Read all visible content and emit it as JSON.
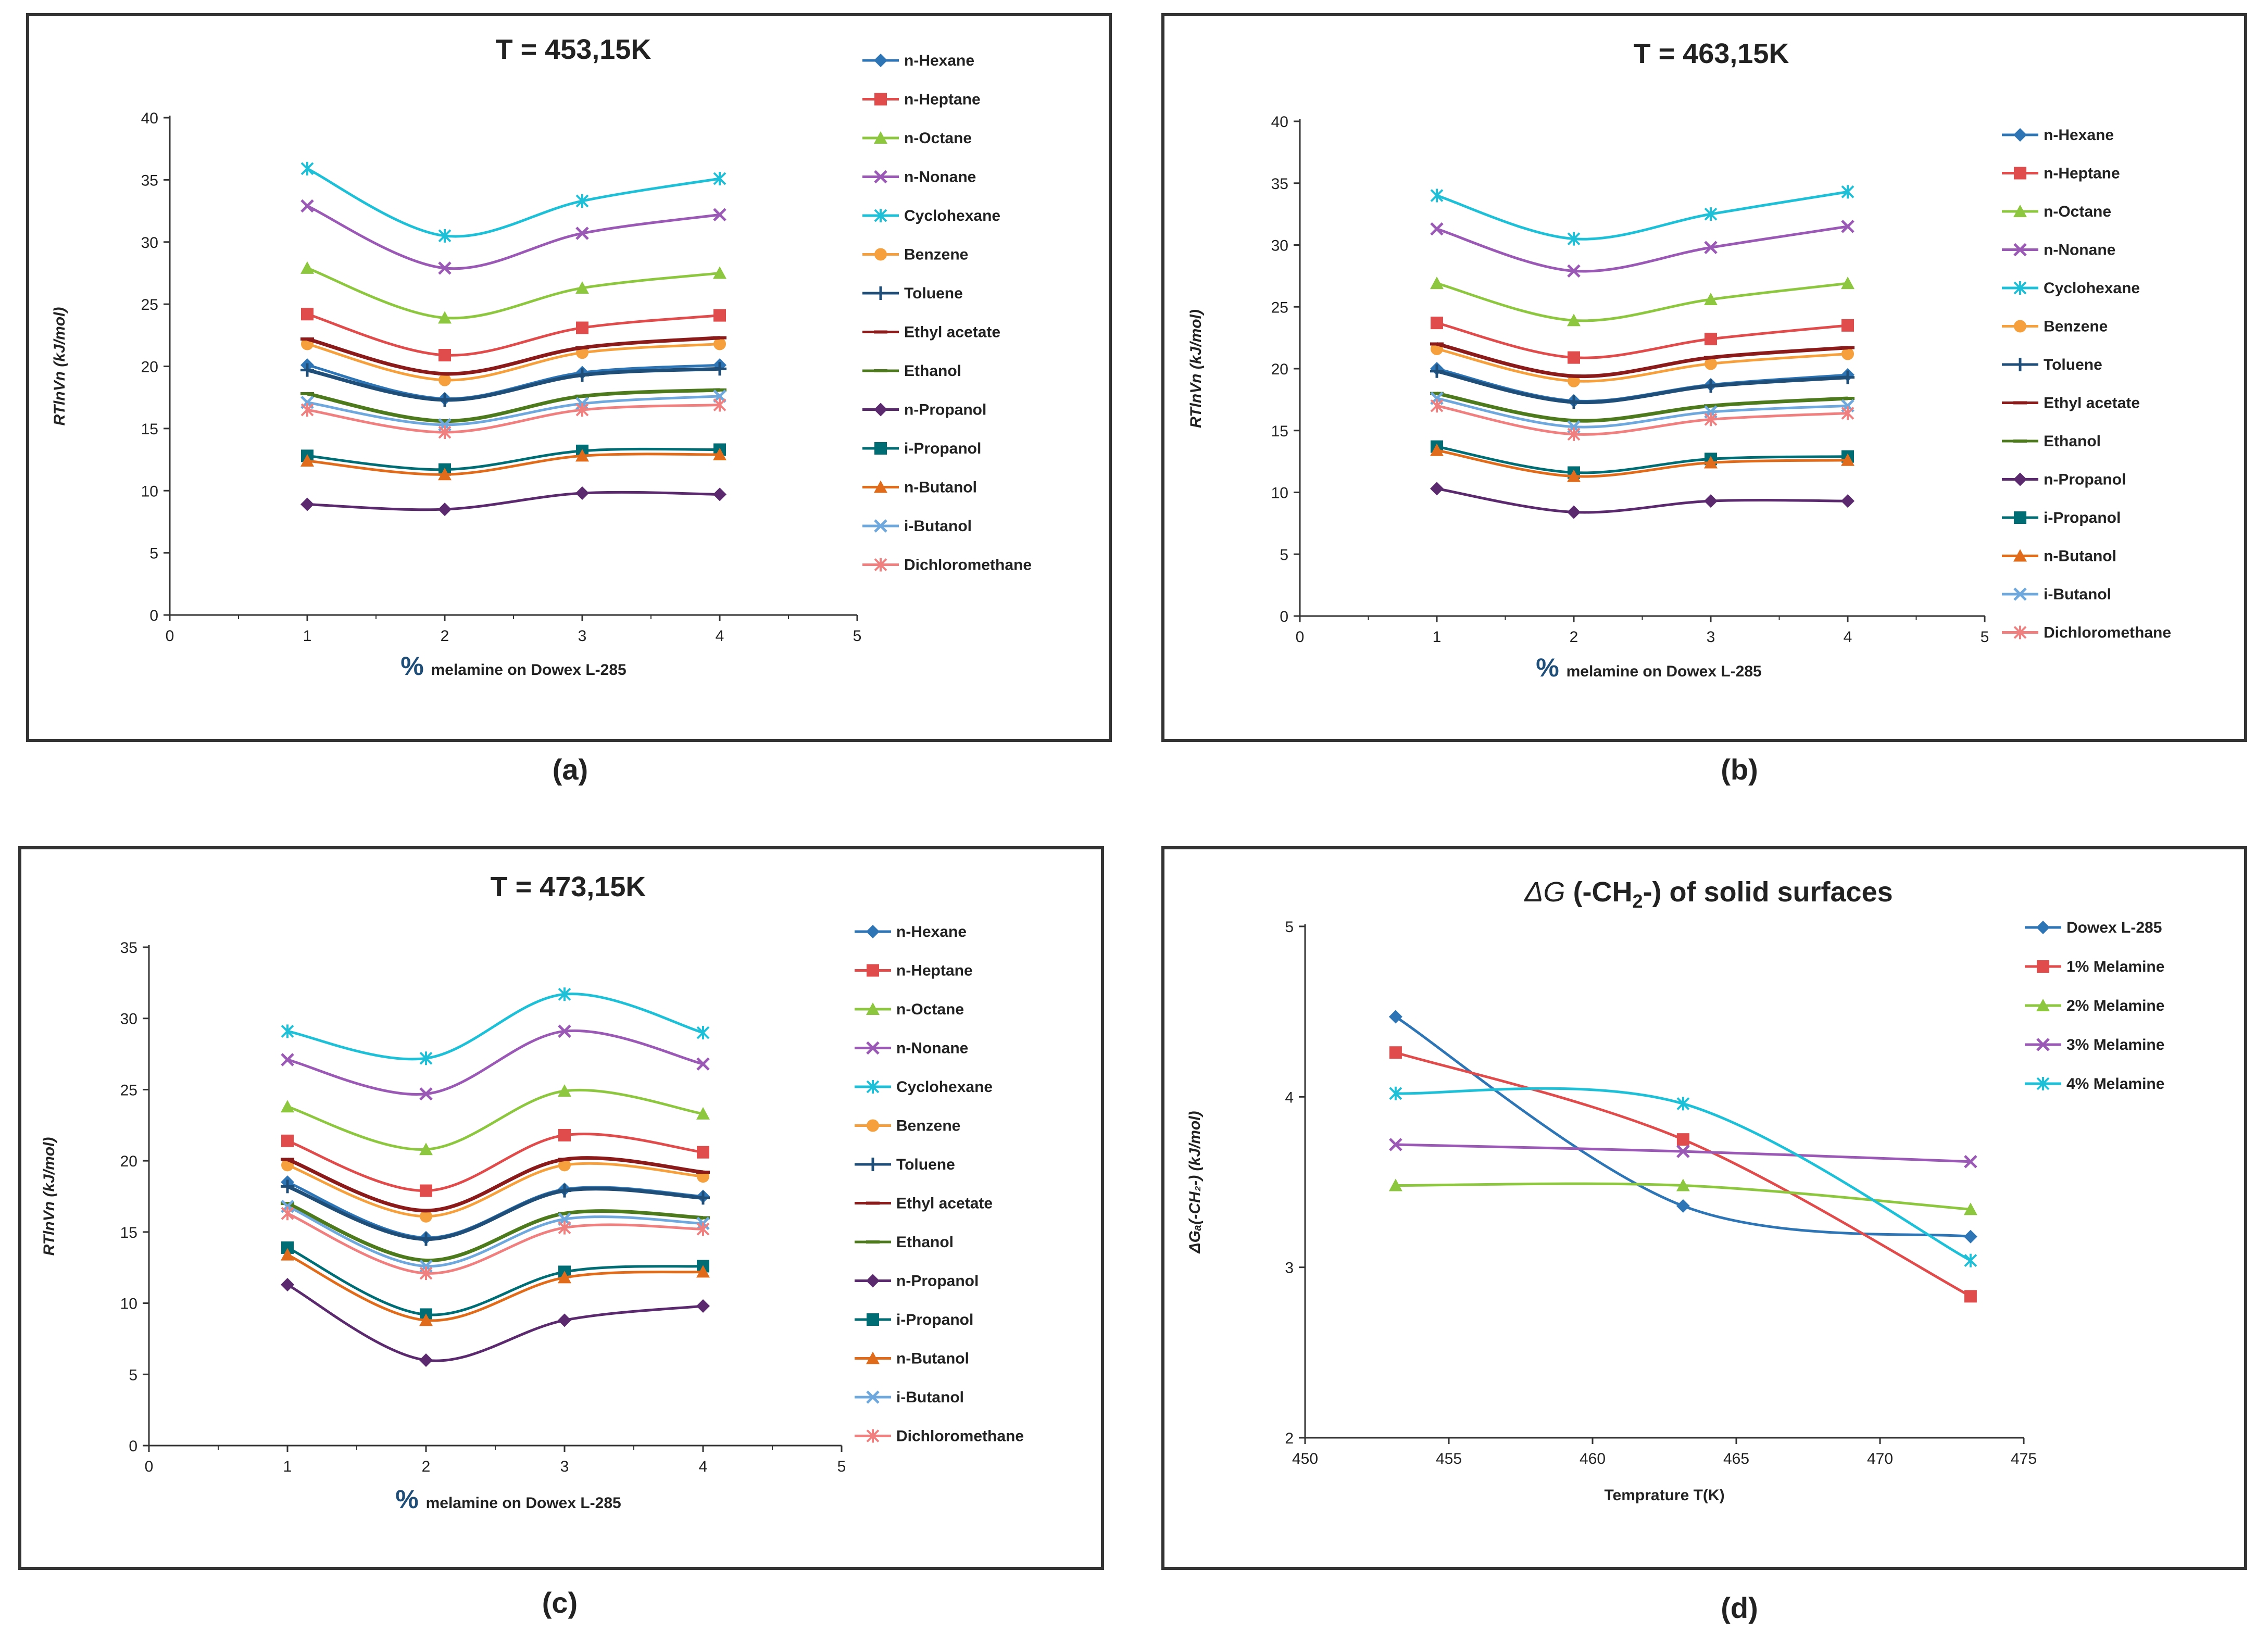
{
  "captions": [
    "(a)",
    "(b)",
    "(c)",
    "(d)"
  ],
  "colors": {
    "n-Hexane": "#2E75B6",
    "n-Heptane": "#E04B4B",
    "n-Octane": "#8DC63F",
    "n-Nonane": "#9B59B6",
    "Cyclohexane": "#1EC0D8",
    "Benzene": "#F5A03C",
    "Toluene": "#1F4E79",
    "Ethyl acetate": "#8B1A1A",
    "Ethanol": "#4E7A1E",
    "n-Propanol": "#5B2A6E",
    "i-Propanol": "#006D75",
    "n-Butanol": "#E06C1B",
    "i-Butanol": "#6FA8DC",
    "Dichloromethane": "#F08080",
    "Dowex L-285": "#2E75B6",
    "1% Melamine": "#E04B4B",
    "2% Melamine": "#8DC63F",
    "3% Melamine": "#9B59B6",
    "4% Melamine": "#1EC0D8"
  },
  "chart_data": [
    {
      "type": "line",
      "title": "T = 453,15K",
      "xlabel_prefix": "%",
      "xlabel": "melamine on Dowex L-285",
      "ylabel": "RTlnVn (kJ/mol)",
      "xlim": [
        0,
        5
      ],
      "ylim": [
        0,
        40
      ],
      "yticks": [
        0,
        5,
        10,
        15,
        20,
        25,
        30,
        35,
        40
      ],
      "xticks": [
        0,
        1,
        2,
        3,
        4,
        5
      ],
      "x": [
        1,
        2,
        3,
        4
      ],
      "series": [
        {
          "name": "n-Hexane",
          "marker": "diamond",
          "values": [
            20.1,
            17.4,
            19.5,
            20.1
          ]
        },
        {
          "name": "n-Heptane",
          "marker": "square",
          "values": [
            24.2,
            20.9,
            23.1,
            24.1
          ]
        },
        {
          "name": "n-Octane",
          "marker": "triangle",
          "values": [
            27.9,
            23.9,
            26.3,
            27.5
          ]
        },
        {
          "name": "n-Nonane",
          "marker": "x",
          "values": [
            32.9,
            27.9,
            30.7,
            32.2
          ]
        },
        {
          "name": "Cyclohexane",
          "marker": "star",
          "values": [
            35.9,
            30.5,
            33.3,
            35.1
          ]
        },
        {
          "name": "Benzene",
          "marker": "circle",
          "values": [
            21.8,
            18.9,
            21.1,
            21.8
          ]
        },
        {
          "name": "Toluene",
          "marker": "plus",
          "values": [
            19.7,
            17.3,
            19.3,
            19.8
          ]
        },
        {
          "name": "Ethyl acetate",
          "marker": "dash",
          "values": [
            22.2,
            19.4,
            21.5,
            22.3
          ]
        },
        {
          "name": "Ethanol",
          "marker": "dash",
          "values": [
            17.8,
            15.6,
            17.6,
            18.1
          ]
        },
        {
          "name": "n-Propanol",
          "marker": "diamond",
          "values": [
            8.9,
            8.5,
            9.8,
            9.7
          ]
        },
        {
          "name": "i-Propanol",
          "marker": "square",
          "values": [
            12.8,
            11.7,
            13.2,
            13.3
          ]
        },
        {
          "name": "n-Butanol",
          "marker": "triangle",
          "values": [
            12.4,
            11.3,
            12.8,
            12.9
          ]
        },
        {
          "name": "i-Butanol",
          "marker": "x",
          "values": [
            17.1,
            15.3,
            17.0,
            17.6
          ]
        },
        {
          "name": "Dichloromethane",
          "marker": "star",
          "values": [
            16.5,
            14.7,
            16.5,
            16.9
          ]
        }
      ]
    },
    {
      "type": "line",
      "title": "T = 463,15K",
      "xlabel_prefix": "%",
      "xlabel": "melamine on Dowex L-285",
      "ylabel": "RTlnVn (kJ/mol)",
      "xlim": [
        0,
        5
      ],
      "ylim": [
        0,
        40
      ],
      "yticks": [
        0,
        5,
        10,
        15,
        20,
        25,
        30,
        35,
        40
      ],
      "xticks": [
        0,
        1,
        2,
        3,
        4,
        5
      ],
      "x": [
        1,
        2,
        3,
        4
      ],
      "series": [
        {
          "name": "n-Hexane",
          "marker": "diamond",
          "values": [
            20.0,
            17.4,
            18.7,
            19.5
          ]
        },
        {
          "name": "n-Heptane",
          "marker": "square",
          "values": [
            23.7,
            20.9,
            22.4,
            23.5
          ]
        },
        {
          "name": "n-Octane",
          "marker": "triangle",
          "values": [
            26.9,
            23.9,
            25.6,
            26.9
          ]
        },
        {
          "name": "n-Nonane",
          "marker": "x",
          "values": [
            31.3,
            27.9,
            29.8,
            31.5
          ]
        },
        {
          "name": "Cyclohexane",
          "marker": "star",
          "values": [
            34.0,
            30.5,
            32.5,
            34.3
          ]
        },
        {
          "name": "Benzene",
          "marker": "circle",
          "values": [
            21.6,
            19.0,
            20.4,
            21.2
          ]
        },
        {
          "name": "Toluene",
          "marker": "plus",
          "values": [
            19.8,
            17.3,
            18.6,
            19.3
          ]
        },
        {
          "name": "Ethyl acetate",
          "marker": "dash",
          "values": [
            22.0,
            19.4,
            20.9,
            21.7
          ]
        },
        {
          "name": "Ethanol",
          "marker": "dash",
          "values": [
            18.0,
            15.8,
            17.0,
            17.6
          ]
        },
        {
          "name": "n-Propanol",
          "marker": "diamond",
          "values": [
            10.3,
            8.4,
            9.3,
            9.3
          ]
        },
        {
          "name": "i-Propanol",
          "marker": "square",
          "values": [
            13.7,
            11.6,
            12.7,
            12.9
          ]
        },
        {
          "name": "n-Butanol",
          "marker": "triangle",
          "values": [
            13.4,
            11.3,
            12.4,
            12.6
          ]
        },
        {
          "name": "i-Butanol",
          "marker": "x",
          "values": [
            17.6,
            15.3,
            16.5,
            17.0
          ]
        },
        {
          "name": "Dichloromethane",
          "marker": "star",
          "values": [
            17.0,
            14.7,
            15.9,
            16.4
          ]
        }
      ]
    },
    {
      "type": "line",
      "title": "T = 473,15K",
      "xlabel_prefix": "%",
      "xlabel": "melamine on Dowex L-285",
      "ylabel": "RTlnVn (kJ/mol)",
      "xlim": [
        0,
        5
      ],
      "ylim": [
        0,
        35
      ],
      "yticks": [
        0,
        5,
        10,
        15,
        20,
        25,
        30,
        35
      ],
      "xticks": [
        0,
        1,
        2,
        3,
        4,
        5
      ],
      "x": [
        1,
        2,
        3,
        4
      ],
      "series": [
        {
          "name": "n-Hexane",
          "marker": "diamond",
          "values": [
            18.5,
            14.6,
            18.0,
            17.5
          ]
        },
        {
          "name": "n-Heptane",
          "marker": "square",
          "values": [
            21.4,
            17.9,
            21.8,
            20.6
          ]
        },
        {
          "name": "n-Octane",
          "marker": "triangle",
          "values": [
            23.8,
            20.8,
            24.9,
            23.3
          ]
        },
        {
          "name": "n-Nonane",
          "marker": "x",
          "values": [
            27.1,
            24.7,
            29.1,
            26.8
          ]
        },
        {
          "name": "Cyclohexane",
          "marker": "star",
          "values": [
            29.1,
            27.2,
            31.7,
            29.0
          ]
        },
        {
          "name": "Benzene",
          "marker": "circle",
          "values": [
            19.7,
            16.1,
            19.7,
            18.9
          ]
        },
        {
          "name": "Toluene",
          "marker": "plus",
          "values": [
            18.2,
            14.5,
            17.9,
            17.4
          ]
        },
        {
          "name": "Ethyl acetate",
          "marker": "dash",
          "values": [
            20.1,
            16.5,
            20.1,
            19.2
          ]
        },
        {
          "name": "Ethanol",
          "marker": "dash",
          "values": [
            17.0,
            13.0,
            16.3,
            16.0
          ]
        },
        {
          "name": "n-Propanol",
          "marker": "diamond",
          "values": [
            11.3,
            6.0,
            8.8,
            9.8
          ]
        },
        {
          "name": "i-Propanol",
          "marker": "square",
          "values": [
            13.9,
            9.2,
            12.2,
            12.6
          ]
        },
        {
          "name": "n-Butanol",
          "marker": "triangle",
          "values": [
            13.4,
            8.8,
            11.8,
            12.2
          ]
        },
        {
          "name": "i-Butanol",
          "marker": "x",
          "values": [
            16.8,
            12.6,
            15.9,
            15.6
          ]
        },
        {
          "name": "Dichloromethane",
          "marker": "star",
          "values": [
            16.3,
            12.1,
            15.3,
            15.2
          ]
        }
      ]
    },
    {
      "type": "line",
      "title_symbol": "ΔG",
      "title_rest": " (-CH",
      "title_sub": "2",
      "title_end": "-) of solid surfaces",
      "xlabel": "Temprature T(K)",
      "ylabel": "ΔGₐ(-CH₂-) (kJ/mol)",
      "xlim": [
        450,
        475
      ],
      "ylim": [
        2,
        5
      ],
      "yticks": [
        2,
        3,
        4,
        5
      ],
      "xticks": [
        450,
        455,
        460,
        465,
        470,
        475
      ],
      "x": [
        453.15,
        463.15,
        473.15
      ],
      "series": [
        {
          "name": "Dowex L-285",
          "marker": "diamond",
          "values": [
            4.47,
            3.36,
            3.18
          ]
        },
        {
          "name": "1% Melamine",
          "marker": "square",
          "values": [
            4.26,
            3.75,
            2.83
          ]
        },
        {
          "name": "2% Melamine",
          "marker": "triangle",
          "values": [
            3.48,
            3.48,
            3.34
          ]
        },
        {
          "name": "3% Melamine",
          "marker": "x",
          "values": [
            3.72,
            3.68,
            3.62
          ]
        },
        {
          "name": "4% Melamine",
          "marker": "star",
          "values": [
            4.02,
            3.96,
            3.04
          ]
        }
      ]
    }
  ]
}
